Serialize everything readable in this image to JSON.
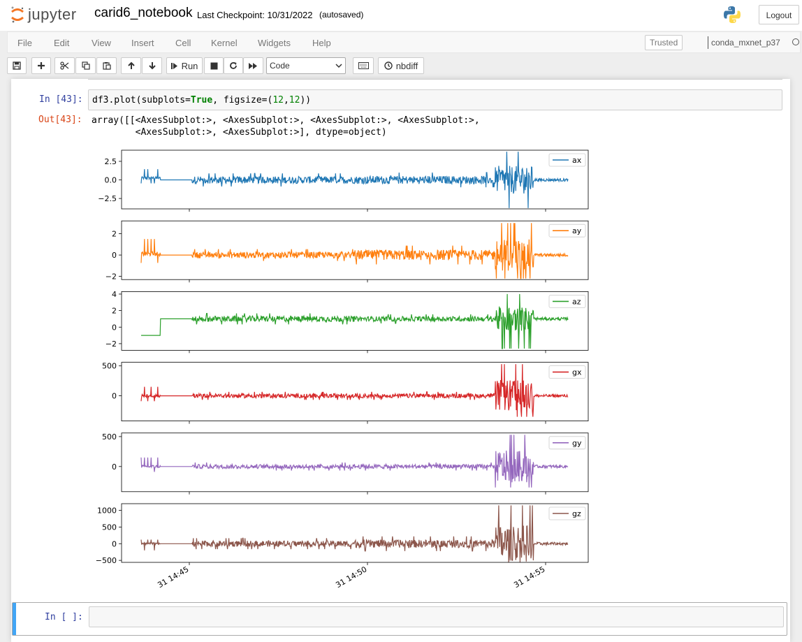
{
  "header": {
    "logo_text": "jupyter",
    "notebook_name": "carid6_notebook",
    "checkpoint": "Last Checkpoint: 10/31/2022",
    "autosave": "(autosaved)",
    "logout_label": "Logout"
  },
  "menubar": {
    "items": [
      "File",
      "Edit",
      "View",
      "Insert",
      "Cell",
      "Kernel",
      "Widgets",
      "Help"
    ],
    "trusted_label": "Trusted",
    "kernel_name": "conda_mxnet_p37"
  },
  "toolbar": {
    "run_label": "Run",
    "cell_type": "Code",
    "nbdiff_label": "nbdiff",
    "icons": [
      "save-icon",
      "plus-icon",
      "cut-icon",
      "copy-icon",
      "paste-icon",
      "arrow-up-icon",
      "arrow-down-icon",
      "step-forward-icon",
      "stop-icon",
      "restart-icon",
      "fast-forward-icon",
      "keyboard-icon",
      "history-icon"
    ]
  },
  "cells": {
    "in43_prompt": "In [43]:",
    "out43_prompt": "Out[43]:",
    "code": {
      "p1": "df3.plot(subplots=",
      "p2": "True",
      "p3": ", figsize=",
      "p4": "(",
      "p5": "12",
      "p6": ",",
      "p7": "12",
      "p8": "))"
    },
    "output_line1": "array([[<AxesSubplot:>, <AxesSubplot:>, <AxesSubplot:>, <AxesSubplot:>,",
    "output_line2": "        <AxesSubplot:>, <AxesSubplot:>], dtype=object)",
    "empty_prompt": "In [ ]:"
  },
  "chart_data": {
    "type": "line",
    "x_tick_labels": [
      "31 14:45",
      "31 14:50",
      "31 14:55"
    ],
    "subplots": [
      {
        "name": "ax",
        "color": "#1f77b4",
        "yticks": [
          2.5,
          0.0,
          -2.5
        ],
        "ytick_labels": [
          "2.5",
          "0.0",
          "−2.5"
        ],
        "ylim": [
          -3.9,
          4.0
        ],
        "base": 0.0,
        "lead": 0.25,
        "lead_spike": 1.2,
        "low": 0.0,
        "noise": 0.8,
        "mid_noise": 0.9,
        "burst": 3.8,
        "burst_min": -3.8,
        "tail": 0.0
      },
      {
        "name": "ay",
        "color": "#ff7f0e",
        "yticks": [
          2,
          0,
          -2
        ],
        "ytick_labels": [
          "2",
          "0",
          "−2"
        ],
        "ylim": [
          -2.3,
          3.2
        ],
        "base": 0.0,
        "lead": 0.1,
        "lead_spike": 1.4,
        "low": 0.0,
        "noise": 0.5,
        "mid_noise": 0.8,
        "burst": 3.0,
        "burst_min": -2.2,
        "tail": 0.0
      },
      {
        "name": "az",
        "color": "#2ca02c",
        "yticks": [
          4,
          2,
          0,
          -2
        ],
        "ytick_labels": [
          "4",
          "2",
          "0",
          "−2"
        ],
        "ylim": [
          -2.8,
          4.3
        ],
        "base": 1.0,
        "lead": -1.0,
        "lead_spike": 0,
        "low": 1.0,
        "noise": 0.6,
        "mid_noise": 0.5,
        "burst": 4.0,
        "burst_min": -2.6,
        "tail": 1.0
      },
      {
        "name": "gx",
        "color": "#d62728",
        "yticks": [
          500,
          0
        ],
        "ytick_labels": [
          "500",
          "0"
        ],
        "ylim": [
          -420,
          560
        ],
        "base": 0.0,
        "lead": 0,
        "lead_spike": 150,
        "low": 0.0,
        "noise": 60,
        "mid_noise": 60,
        "burst": 530,
        "burst_min": -350,
        "tail": 0.0
      },
      {
        "name": "gy",
        "color": "#9467bd",
        "yticks": [
          500,
          0
        ],
        "ytick_labels": [
          "500",
          "0"
        ],
        "ylim": [
          -420,
          560
        ],
        "base": 0.0,
        "lead": 0,
        "lead_spike": 150,
        "low": 0.0,
        "noise": 60,
        "mid_noise": 60,
        "burst": 530,
        "burst_min": -350,
        "tail": 0.0
      },
      {
        "name": "gz",
        "color": "#8c564b",
        "yticks": [
          1000,
          500,
          0,
          -500
        ],
        "ytick_labels": [
          "1000",
          "500",
          "0",
          "−500"
        ],
        "ylim": [
          -560,
          1200
        ],
        "base": 0.0,
        "lead": 0,
        "lead_spike": -200,
        "low": 0.0,
        "noise": 150,
        "mid_noise": 200,
        "burst": 1150,
        "burst_min": -500,
        "tail": 0.0
      }
    ]
  }
}
